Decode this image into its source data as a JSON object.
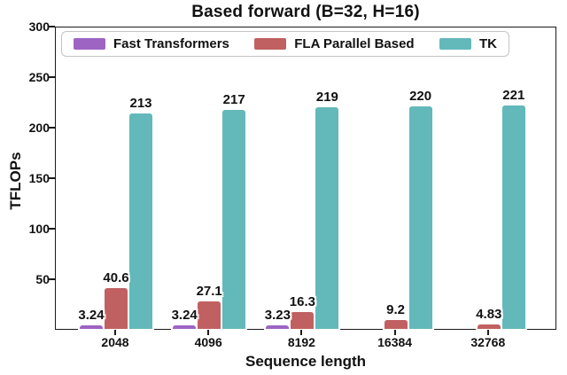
{
  "title": "Based forward (B=32, H=16)",
  "chart_data": {
    "type": "bar",
    "title": "Based forward (B=32, H=16)",
    "xlabel": "Sequence length",
    "ylabel": "TFLOPs",
    "categories": [
      "2048",
      "4096",
      "8192",
      "16384",
      "32768"
    ],
    "series": [
      {
        "name": "Fast Transformers",
        "color": "#9d64c3",
        "values": [
          3.24,
          3.24,
          3.23,
          null,
          null
        ],
        "value_labels": [
          "3.24",
          "3.24",
          "3.23",
          "",
          ""
        ]
      },
      {
        "name": "FLA Parallel Based",
        "color": "#c16061",
        "values": [
          40.6,
          27.1,
          16.3,
          9.2,
          4.83
        ],
        "value_labels": [
          "40.6",
          "27.1",
          "16.3",
          "9.2",
          "4.83"
        ]
      },
      {
        "name": "TK",
        "color": "#63b8ba",
        "values": [
          213,
          217,
          219,
          220,
          221
        ],
        "value_labels": [
          "213",
          "217",
          "219",
          "220",
          "221"
        ]
      }
    ],
    "ylim": [
      0,
      300
    ],
    "yticks": [
      50,
      100,
      150,
      200,
      250,
      300
    ],
    "grid": false,
    "legend_position": "upper center",
    "style": "xkcd-hand-drawn",
    "axis_color": "#1a1a1a",
    "background_color": "#ffffff"
  }
}
